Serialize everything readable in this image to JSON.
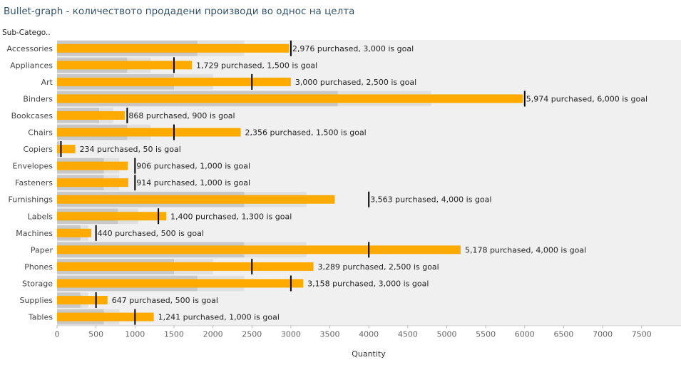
{
  "title": "Bullet-graph - количеството продадени производи во однос на целта",
  "header": "Sub-Catego..",
  "chart_data": {
    "type": "bar",
    "subtype": "bullet",
    "xlabel": "Quantity",
    "xlim": [
      0,
      7800
    ],
    "xticks": [
      0,
      500,
      1000,
      1500,
      2000,
      2500,
      3000,
      3500,
      4000,
      4500,
      5000,
      5500,
      6000,
      6500,
      7000,
      7500
    ],
    "grid": false,
    "colors": {
      "bar": "#FFAA00",
      "goal": "#000000",
      "band_dark": "#c8c8c8",
      "band_light": "#e0e0e0",
      "background": "#f0f0f0"
    },
    "categories": [
      "Accessories",
      "Appliances",
      "Art",
      "Binders",
      "Bookcases",
      "Chairs",
      "Copiers",
      "Envelopes",
      "Fasteners",
      "Furnishings",
      "Labels",
      "Machines",
      "Paper",
      "Phones",
      "Storage",
      "Supplies",
      "Tables"
    ],
    "values": [
      2976,
      1729,
      3000,
      5974,
      868,
      2356,
      234,
      906,
      914,
      3563,
      1400,
      440,
      5178,
      3289,
      3158,
      647,
      1241
    ],
    "goals": [
      3000,
      1500,
      2500,
      6000,
      900,
      1500,
      50,
      1000,
      1000,
      4000,
      1300,
      500,
      4000,
      2500,
      3000,
      500,
      1000
    ],
    "labels": [
      "2,976 purchased, 3,000 is goal",
      "1,729 purchased, 1,500 is goal",
      "3,000 purchased, 2,500 is goal",
      "5,974 purchased, 6,000 is goal",
      "868 purchased, 900 is goal",
      "2,356 purchased, 1,500 is goal",
      "234 purchased, 50 is goal",
      "906 purchased, 1,000 is goal",
      "914 purchased, 1,000 is goal",
      "3,563 purchased, 4,000 is goal",
      "1,400 purchased, 1,300 is goal",
      "440 purchased, 500 is goal",
      "5,178 purchased, 4,000 is goal",
      "3,289 purchased, 2,500 is goal",
      "3,158 purchased, 3,000 is goal",
      "647 purchased, 500 is goal",
      "1,241 purchased, 1,000 is goal"
    ],
    "band_fractions": [
      0.6,
      0.8
    ]
  }
}
